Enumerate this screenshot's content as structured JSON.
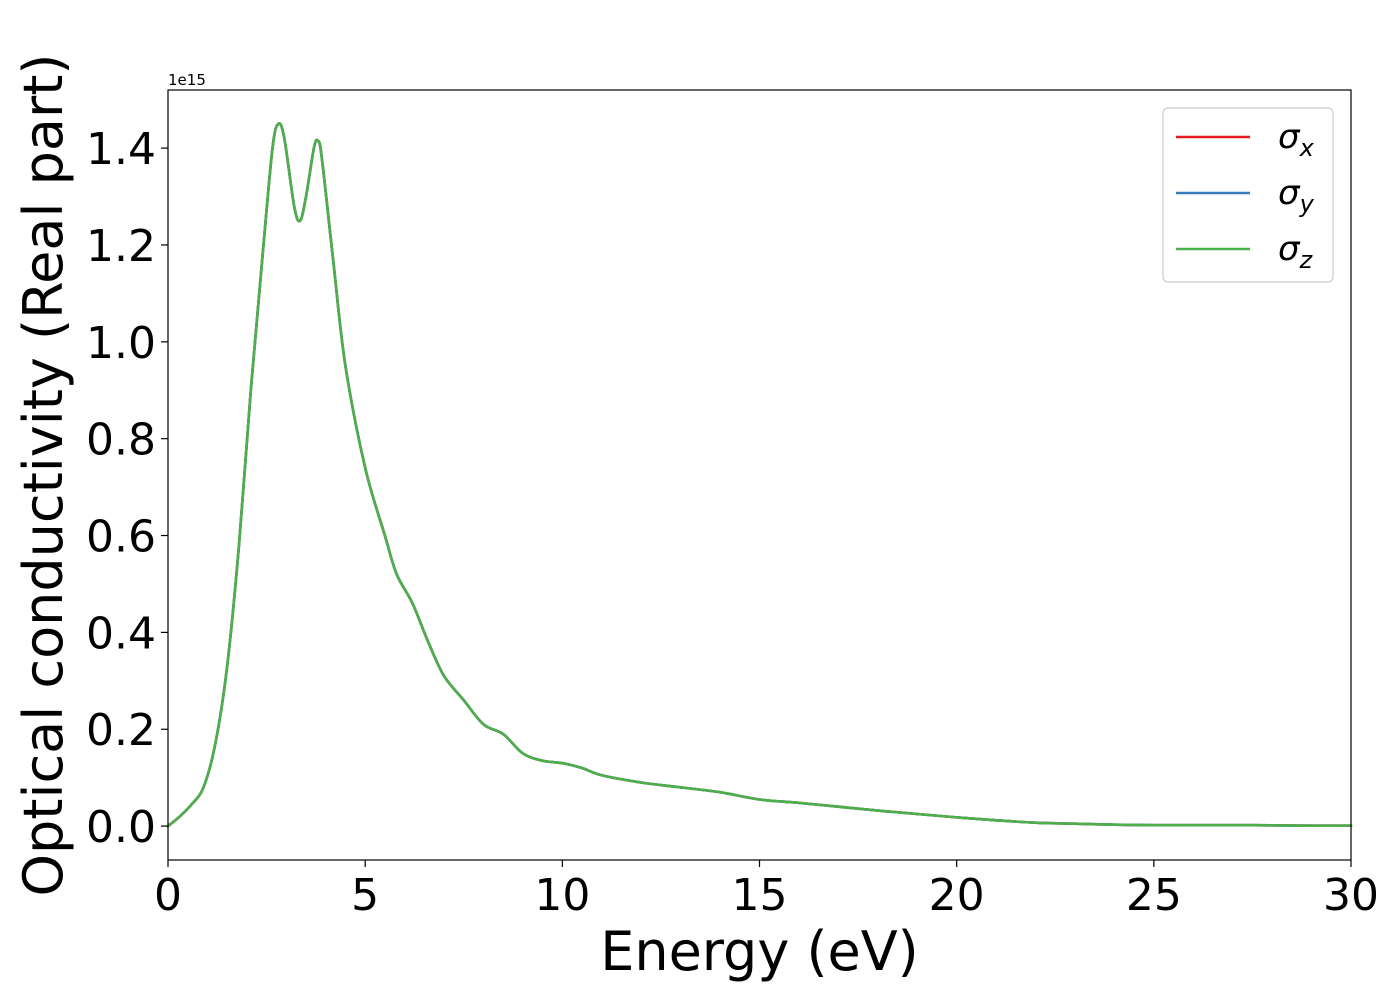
{
  "chart_data": {
    "type": "line",
    "xlabel": "Energy (eV)",
    "ylabel": "Optical conductivity (Real part)",
    "y_offset_text": "1e15",
    "xlim": [
      0,
      30
    ],
    "ylim": [
      -0.07,
      1.52
    ],
    "x_ticks": [
      0,
      5,
      10,
      15,
      20,
      25,
      30
    ],
    "x_tick_labels": [
      "0",
      "5",
      "10",
      "15",
      "20",
      "25",
      "30"
    ],
    "y_ticks": [
      0.0,
      0.2,
      0.4,
      0.6,
      0.8,
      1.0,
      1.2,
      1.4
    ],
    "y_tick_labels": [
      "0.0",
      "0.2",
      "0.4",
      "0.6",
      "0.8",
      "1.0",
      "1.2",
      "1.4"
    ],
    "grid": false,
    "legend_position": "top-right",
    "x": [
      0,
      0.3,
      0.6,
      0.9,
      1.2,
      1.5,
      1.8,
      2.1,
      2.4,
      2.65,
      2.8,
      2.95,
      3.2,
      3.35,
      3.5,
      3.7,
      3.8,
      3.9,
      4.2,
      4.5,
      5.0,
      5.5,
      5.8,
      6.2,
      6.6,
      7.0,
      7.5,
      8.0,
      8.5,
      9.0,
      9.5,
      10.0,
      10.5,
      11.0,
      12.0,
      13.0,
      14.0,
      15.0,
      16.0,
      17.0,
      18.0,
      19.0,
      20.0,
      21.0,
      22.0,
      23.0,
      24.0,
      25.0,
      26.0,
      27.0,
      28.0,
      29.0,
      30.0
    ],
    "series": [
      {
        "name_base": "σ",
        "name_sub": "x",
        "color": "#e41a1c",
        "values": [
          0.0,
          0.02,
          0.045,
          0.08,
          0.17,
          0.33,
          0.58,
          0.9,
          1.18,
          1.4,
          1.45,
          1.42,
          1.28,
          1.25,
          1.3,
          1.4,
          1.415,
          1.38,
          1.16,
          0.95,
          0.74,
          0.6,
          0.52,
          0.46,
          0.38,
          0.31,
          0.26,
          0.21,
          0.19,
          0.15,
          0.135,
          0.13,
          0.12,
          0.105,
          0.09,
          0.08,
          0.07,
          0.055,
          0.048,
          0.04,
          0.032,
          0.025,
          0.018,
          0.012,
          0.007,
          0.005,
          0.003,
          0.002,
          0.002,
          0.002,
          0.0015,
          0.001,
          0.001
        ]
      },
      {
        "name_base": "σ",
        "name_sub": "y",
        "color": "#377eb8",
        "values": [
          0.0,
          0.02,
          0.045,
          0.08,
          0.17,
          0.33,
          0.58,
          0.9,
          1.18,
          1.4,
          1.45,
          1.42,
          1.28,
          1.25,
          1.3,
          1.4,
          1.415,
          1.38,
          1.16,
          0.95,
          0.74,
          0.6,
          0.52,
          0.46,
          0.38,
          0.31,
          0.26,
          0.21,
          0.19,
          0.15,
          0.135,
          0.13,
          0.12,
          0.105,
          0.09,
          0.08,
          0.07,
          0.055,
          0.048,
          0.04,
          0.032,
          0.025,
          0.018,
          0.012,
          0.007,
          0.005,
          0.003,
          0.002,
          0.002,
          0.002,
          0.0015,
          0.001,
          0.001
        ]
      },
      {
        "name_base": "σ",
        "name_sub": "z",
        "color": "#4daf4a",
        "values": [
          0.0,
          0.02,
          0.045,
          0.08,
          0.17,
          0.33,
          0.58,
          0.9,
          1.18,
          1.4,
          1.45,
          1.42,
          1.28,
          1.25,
          1.3,
          1.4,
          1.415,
          1.38,
          1.16,
          0.95,
          0.74,
          0.6,
          0.52,
          0.46,
          0.38,
          0.31,
          0.26,
          0.21,
          0.19,
          0.15,
          0.135,
          0.13,
          0.12,
          0.105,
          0.09,
          0.08,
          0.07,
          0.055,
          0.048,
          0.04,
          0.032,
          0.025,
          0.018,
          0.012,
          0.007,
          0.005,
          0.003,
          0.002,
          0.002,
          0.002,
          0.0015,
          0.001,
          0.001
        ]
      }
    ]
  }
}
